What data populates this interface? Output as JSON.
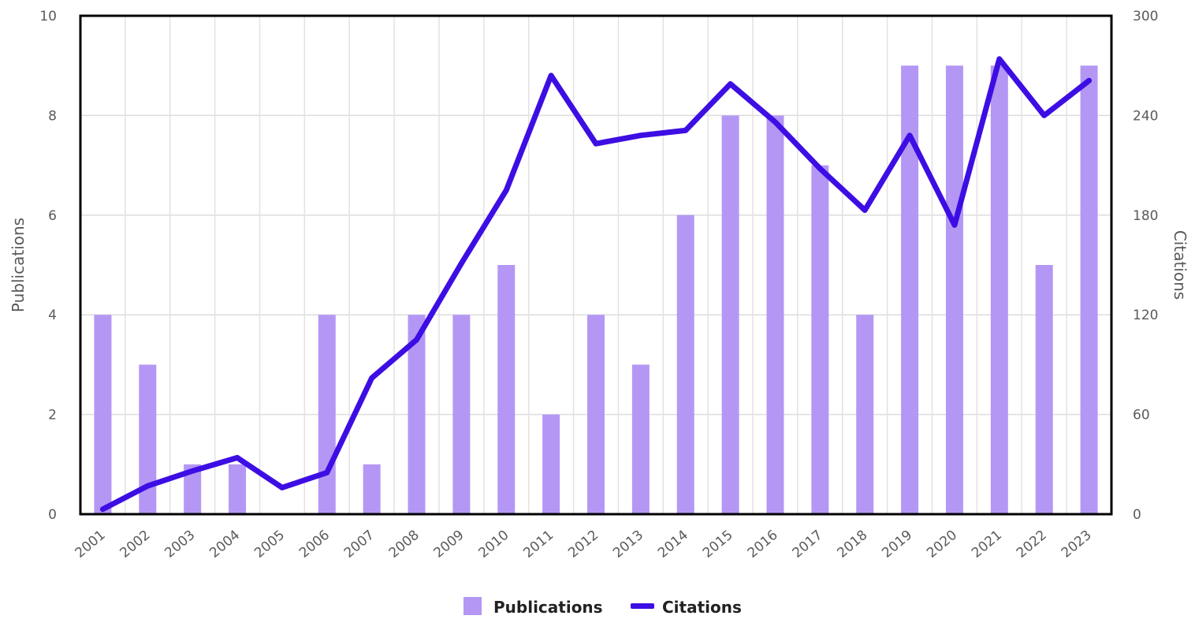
{
  "chart_data": {
    "type": "bar+line",
    "categories": [
      "2001",
      "2002",
      "2003",
      "2004",
      "2005",
      "2006",
      "2007",
      "2008",
      "2009",
      "2010",
      "2011",
      "2012",
      "2013",
      "2014",
      "2015",
      "2016",
      "2017",
      "2018",
      "2019",
      "2020",
      "2021",
      "2022",
      "2023"
    ],
    "series": [
      {
        "name": "Publications",
        "type": "bar",
        "axis": "left",
        "color": "#b497f5",
        "values": [
          4,
          3,
          1,
          1,
          0,
          4,
          1,
          4,
          4,
          5,
          2,
          4,
          3,
          6,
          8,
          8,
          7,
          4,
          9,
          9,
          9,
          5,
          9
        ]
      },
      {
        "name": "Citations",
        "type": "line",
        "axis": "right",
        "color": "#3d0ee3",
        "values": [
          3,
          17,
          26,
          34,
          16,
          25,
          82,
          105,
          151,
          195,
          264,
          223,
          228,
          231,
          259,
          236,
          208,
          183,
          228,
          174,
          274,
          240,
          261
        ]
      }
    ],
    "ylabel_left": "Publications",
    "ylabel_right": "Citations",
    "ylim_left": [
      0,
      10
    ],
    "ylim_right": [
      0,
      300
    ],
    "yticks_left": [
      0,
      2,
      4,
      6,
      8,
      10
    ],
    "yticks_right": [
      0,
      60,
      120,
      180,
      240,
      300
    ],
    "grid": true,
    "legend_position": "bottom-center"
  }
}
